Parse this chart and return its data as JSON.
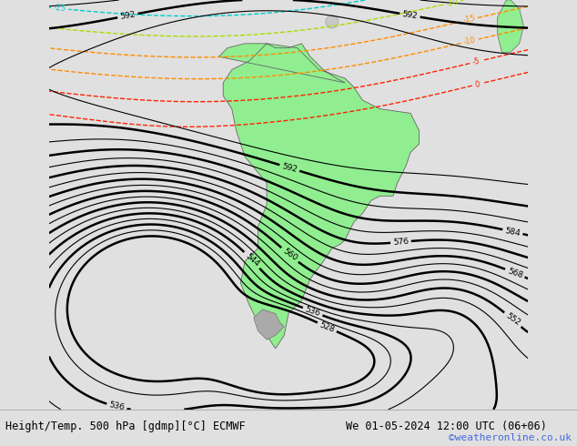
{
  "title_left": "Height/Temp. 500 hPa [gdmp][°C] ECMWF",
  "title_right": "We 01-05-2024 12:00 UTC (06+06)",
  "watermark": "©weatheronline.co.uk",
  "fig_width": 6.34,
  "fig_height": 4.9,
  "dpi": 100,
  "background_color": "#d8d8d8",
  "land_color": "#c8c8c8",
  "south_america_color": "#90ee90",
  "ocean_color": "#d0d0d0",
  "footer_bg": "#ffffff",
  "footer_text_color": "#000000",
  "watermark_color": "#4169e1",
  "z500_color": "#000000",
  "temp_red_color": "#ff2200",
  "temp_orange_color": "#ff8c00",
  "temp_green_color": "#aadd00",
  "temp_cyan_color": "#00cccc"
}
